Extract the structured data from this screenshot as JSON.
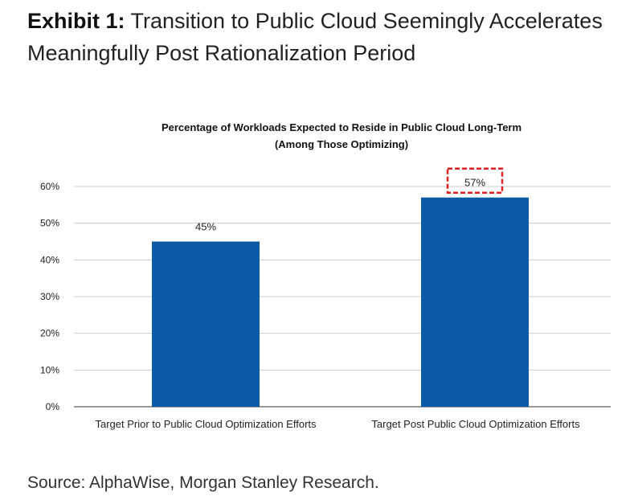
{
  "exhibit": {
    "label": "Exhibit 1:",
    "title": "Transition to Public Cloud Seemingly Accelerates Meaningfully Post Rationalization Period"
  },
  "source": "Source: AlphaWise, Morgan Stanley Research.",
  "colors": {
    "bar": "#0a5aa6",
    "highlight_box": "#e02020",
    "gridline": "#cccccc"
  },
  "chart_data": {
    "type": "bar",
    "title": "Percentage of Workloads Expected to Reside in Public Cloud Long-Term",
    "subtitle": "(Among Those Optimizing)",
    "categories": [
      "Target Prior to Public Cloud Optimization Efforts",
      "Target Post Public Cloud Optimization Efforts"
    ],
    "values": [
      45,
      57
    ],
    "data_labels": [
      "45%",
      "57%"
    ],
    "highlighted_label_index": 1,
    "yticks": [
      "0%",
      "10%",
      "20%",
      "30%",
      "40%",
      "50%",
      "60%"
    ],
    "ylim": [
      0,
      60
    ],
    "grid": true,
    "legend": "none"
  }
}
